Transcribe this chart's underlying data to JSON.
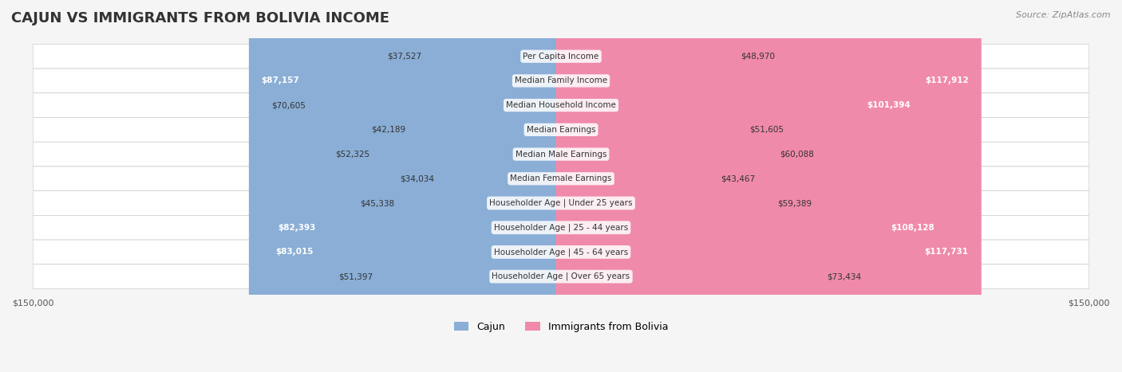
{
  "title": "CAJUN VS IMMIGRANTS FROM BOLIVIA INCOME",
  "source": "Source: ZipAtlas.com",
  "categories": [
    "Per Capita Income",
    "Median Family Income",
    "Median Household Income",
    "Median Earnings",
    "Median Male Earnings",
    "Median Female Earnings",
    "Householder Age | Under 25 years",
    "Householder Age | 25 - 44 years",
    "Householder Age | 45 - 64 years",
    "Householder Age | Over 65 years"
  ],
  "cajun_values": [
    37527,
    87157,
    70605,
    42189,
    52325,
    34034,
    45338,
    82393,
    83015,
    51397
  ],
  "bolivia_values": [
    48970,
    117912,
    101394,
    51605,
    60088,
    43467,
    59389,
    108128,
    117731,
    73434
  ],
  "cajun_labels": [
    "$37,527",
    "$87,157",
    "$70,605",
    "$42,189",
    "$52,325",
    "$34,034",
    "$45,338",
    "$82,393",
    "$83,015",
    "$51,397"
  ],
  "bolivia_labels": [
    "$48,970",
    "$117,912",
    "$101,394",
    "$51,605",
    "$60,088",
    "$43,467",
    "$59,389",
    "$108,128",
    "$117,731",
    "$73,434"
  ],
  "max_value": 150000,
  "cajun_color": "#8aaed6",
  "bolivia_color": "#f08aaa",
  "cajun_dark_color": "#5b8ec7",
  "bolivia_dark_color": "#e8608a",
  "background_color": "#f5f5f5",
  "row_bg_color": "#ffffff",
  "row_alt_color": "#f0f0f0",
  "bar_height": 0.55,
  "legend_cajun": "Cajun",
  "legend_bolivia": "Immigrants from Bolivia"
}
